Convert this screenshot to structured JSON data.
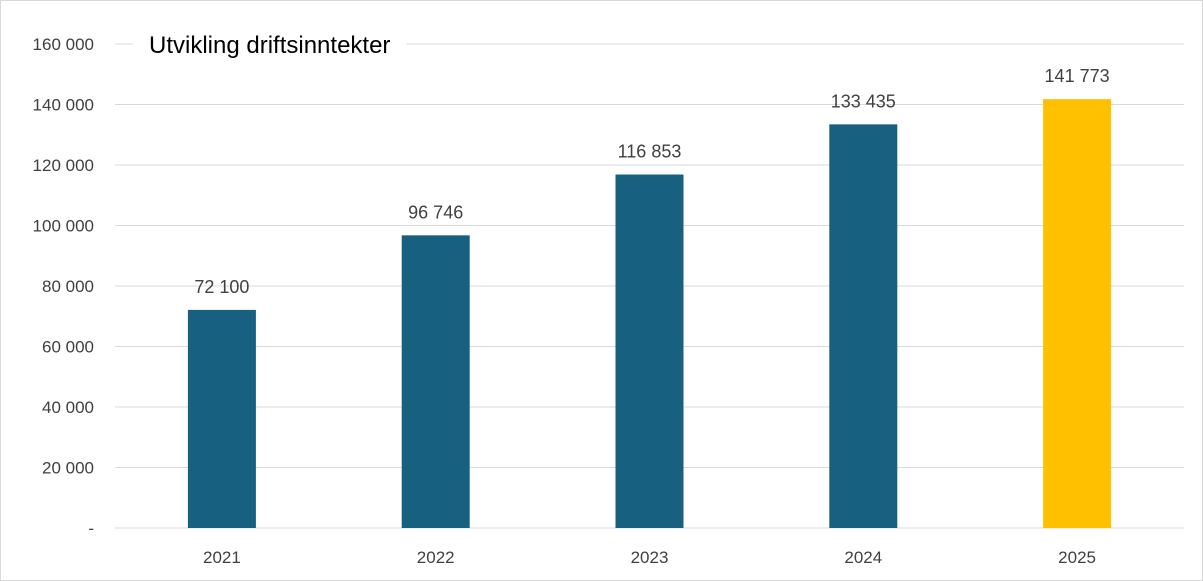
{
  "chart_data": {
    "type": "bar",
    "title": "Utvikling driftsinntekter",
    "categories": [
      "2021",
      "2022",
      "2023",
      "2024",
      "2025"
    ],
    "values": [
      72100,
      96746,
      116853,
      133435,
      141773
    ],
    "value_labels": [
      "72 100",
      "96 746",
      "116 853",
      "133 435",
      "141 773"
    ],
    "ylim": [
      0,
      160000
    ],
    "y_ticks": [
      0,
      20000,
      40000,
      60000,
      80000,
      100000,
      120000,
      140000,
      160000
    ],
    "y_tick_labels": [
      "-",
      "20 000",
      "40 000",
      "60 000",
      "80 000",
      "100 000",
      "120 000",
      "140 000",
      "160 000"
    ],
    "grid": true,
    "colors": {
      "bar": "#17607f",
      "highlight_bar": "#ffc000",
      "grid": "#d9d9d9"
    },
    "highlight_index": 4
  }
}
